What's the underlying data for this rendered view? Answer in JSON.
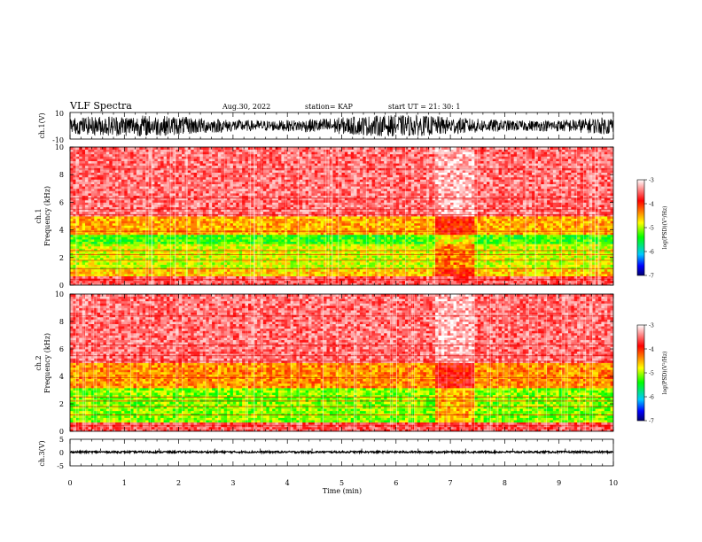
{
  "header": {
    "title": "VLF Spectra",
    "date": "Aug.30, 2022",
    "station": "station= KAP",
    "start": "start  UT  =   21: 30: 1"
  },
  "colors": {
    "spectrum_scale": [
      "#000070",
      "#0000ff",
      "#00c8ff",
      "#00ff00",
      "#ffff00",
      "#ff0000",
      "#ffffff"
    ]
  },
  "colorbar": {
    "label": "log(PSD)(V²/Hz)",
    "ticks": [
      "-3",
      "-4",
      "-5",
      "-6",
      "-7"
    ]
  },
  "xaxis": {
    "label": "Time  (min)",
    "ticks": [
      "0",
      "1",
      "2",
      "3",
      "4",
      "5",
      "6",
      "7",
      "8",
      "9",
      "10"
    ]
  },
  "chart_data": [
    {
      "type": "line",
      "ylabel": "ch.1(V)",
      "ylim": [
        -10,
        10
      ],
      "ytick_labels": [
        "10",
        "-10"
      ],
      "xlim": [
        0,
        10
      ],
      "description_values": "broadband waveform, amplitude roughly ±6 V"
    },
    {
      "type": "heatmap",
      "ylabel": "ch.1\nFrequency  (kHz)",
      "ylabel_lines": [
        "ch.1",
        "Frequency  (kHz)"
      ],
      "xlim": [
        0,
        10
      ],
      "ylim": [
        0,
        10
      ],
      "ytick_labels": [
        "0",
        "2",
        "4",
        "6",
        "8",
        "10"
      ],
      "colorbar_range": [
        -7,
        -3
      ],
      "bands": [
        {
          "freq_khz": [
            0,
            0.6
          ],
          "log_psd": -3.6
        },
        {
          "freq_khz": [
            0.6,
            1.2
          ],
          "log_psd": -4.6
        },
        {
          "freq_khz": [
            1.2,
            3.0
          ],
          "log_psd": -4.9
        },
        {
          "freq_khz": [
            3.0,
            3.6
          ],
          "log_psd": -5.3
        },
        {
          "freq_khz": [
            3.6,
            5.0
          ],
          "log_psd": -4.5
        },
        {
          "freq_khz": [
            5.0,
            10.0
          ],
          "log_psd": -3.5
        }
      ],
      "quiet_interval_min": [
        6.7,
        7.45
      ]
    },
    {
      "type": "heatmap",
      "ylabel": "ch.2\nFrequency  (kHz)",
      "ylabel_lines": [
        "ch.2",
        "Frequency  (kHz)"
      ],
      "xlim": [
        0,
        10
      ],
      "ylim": [
        0,
        10
      ],
      "ytick_labels": [
        "0",
        "2",
        "4",
        "6",
        "8",
        "10"
      ],
      "colorbar_range": [
        -7,
        -3
      ],
      "bands": [
        {
          "freq_khz": [
            0,
            0.6
          ],
          "log_psd": -3.6
        },
        {
          "freq_khz": [
            0.6,
            3.2
          ],
          "log_psd": -5.1
        },
        {
          "freq_khz": [
            3.2,
            5.0
          ],
          "log_psd": -4.4
        },
        {
          "freq_khz": [
            5.0,
            10.0
          ],
          "log_psd": -3.5
        }
      ],
      "quiet_interval_min": [
        6.7,
        7.45
      ]
    },
    {
      "type": "line",
      "ylabel": "ch.3(V)",
      "ylim": [
        -5,
        5
      ],
      "ytick_labels": [
        "5",
        "0",
        "-5"
      ],
      "xlim": [
        0,
        10
      ],
      "description_values": "near-constant trace around 0 V"
    }
  ]
}
